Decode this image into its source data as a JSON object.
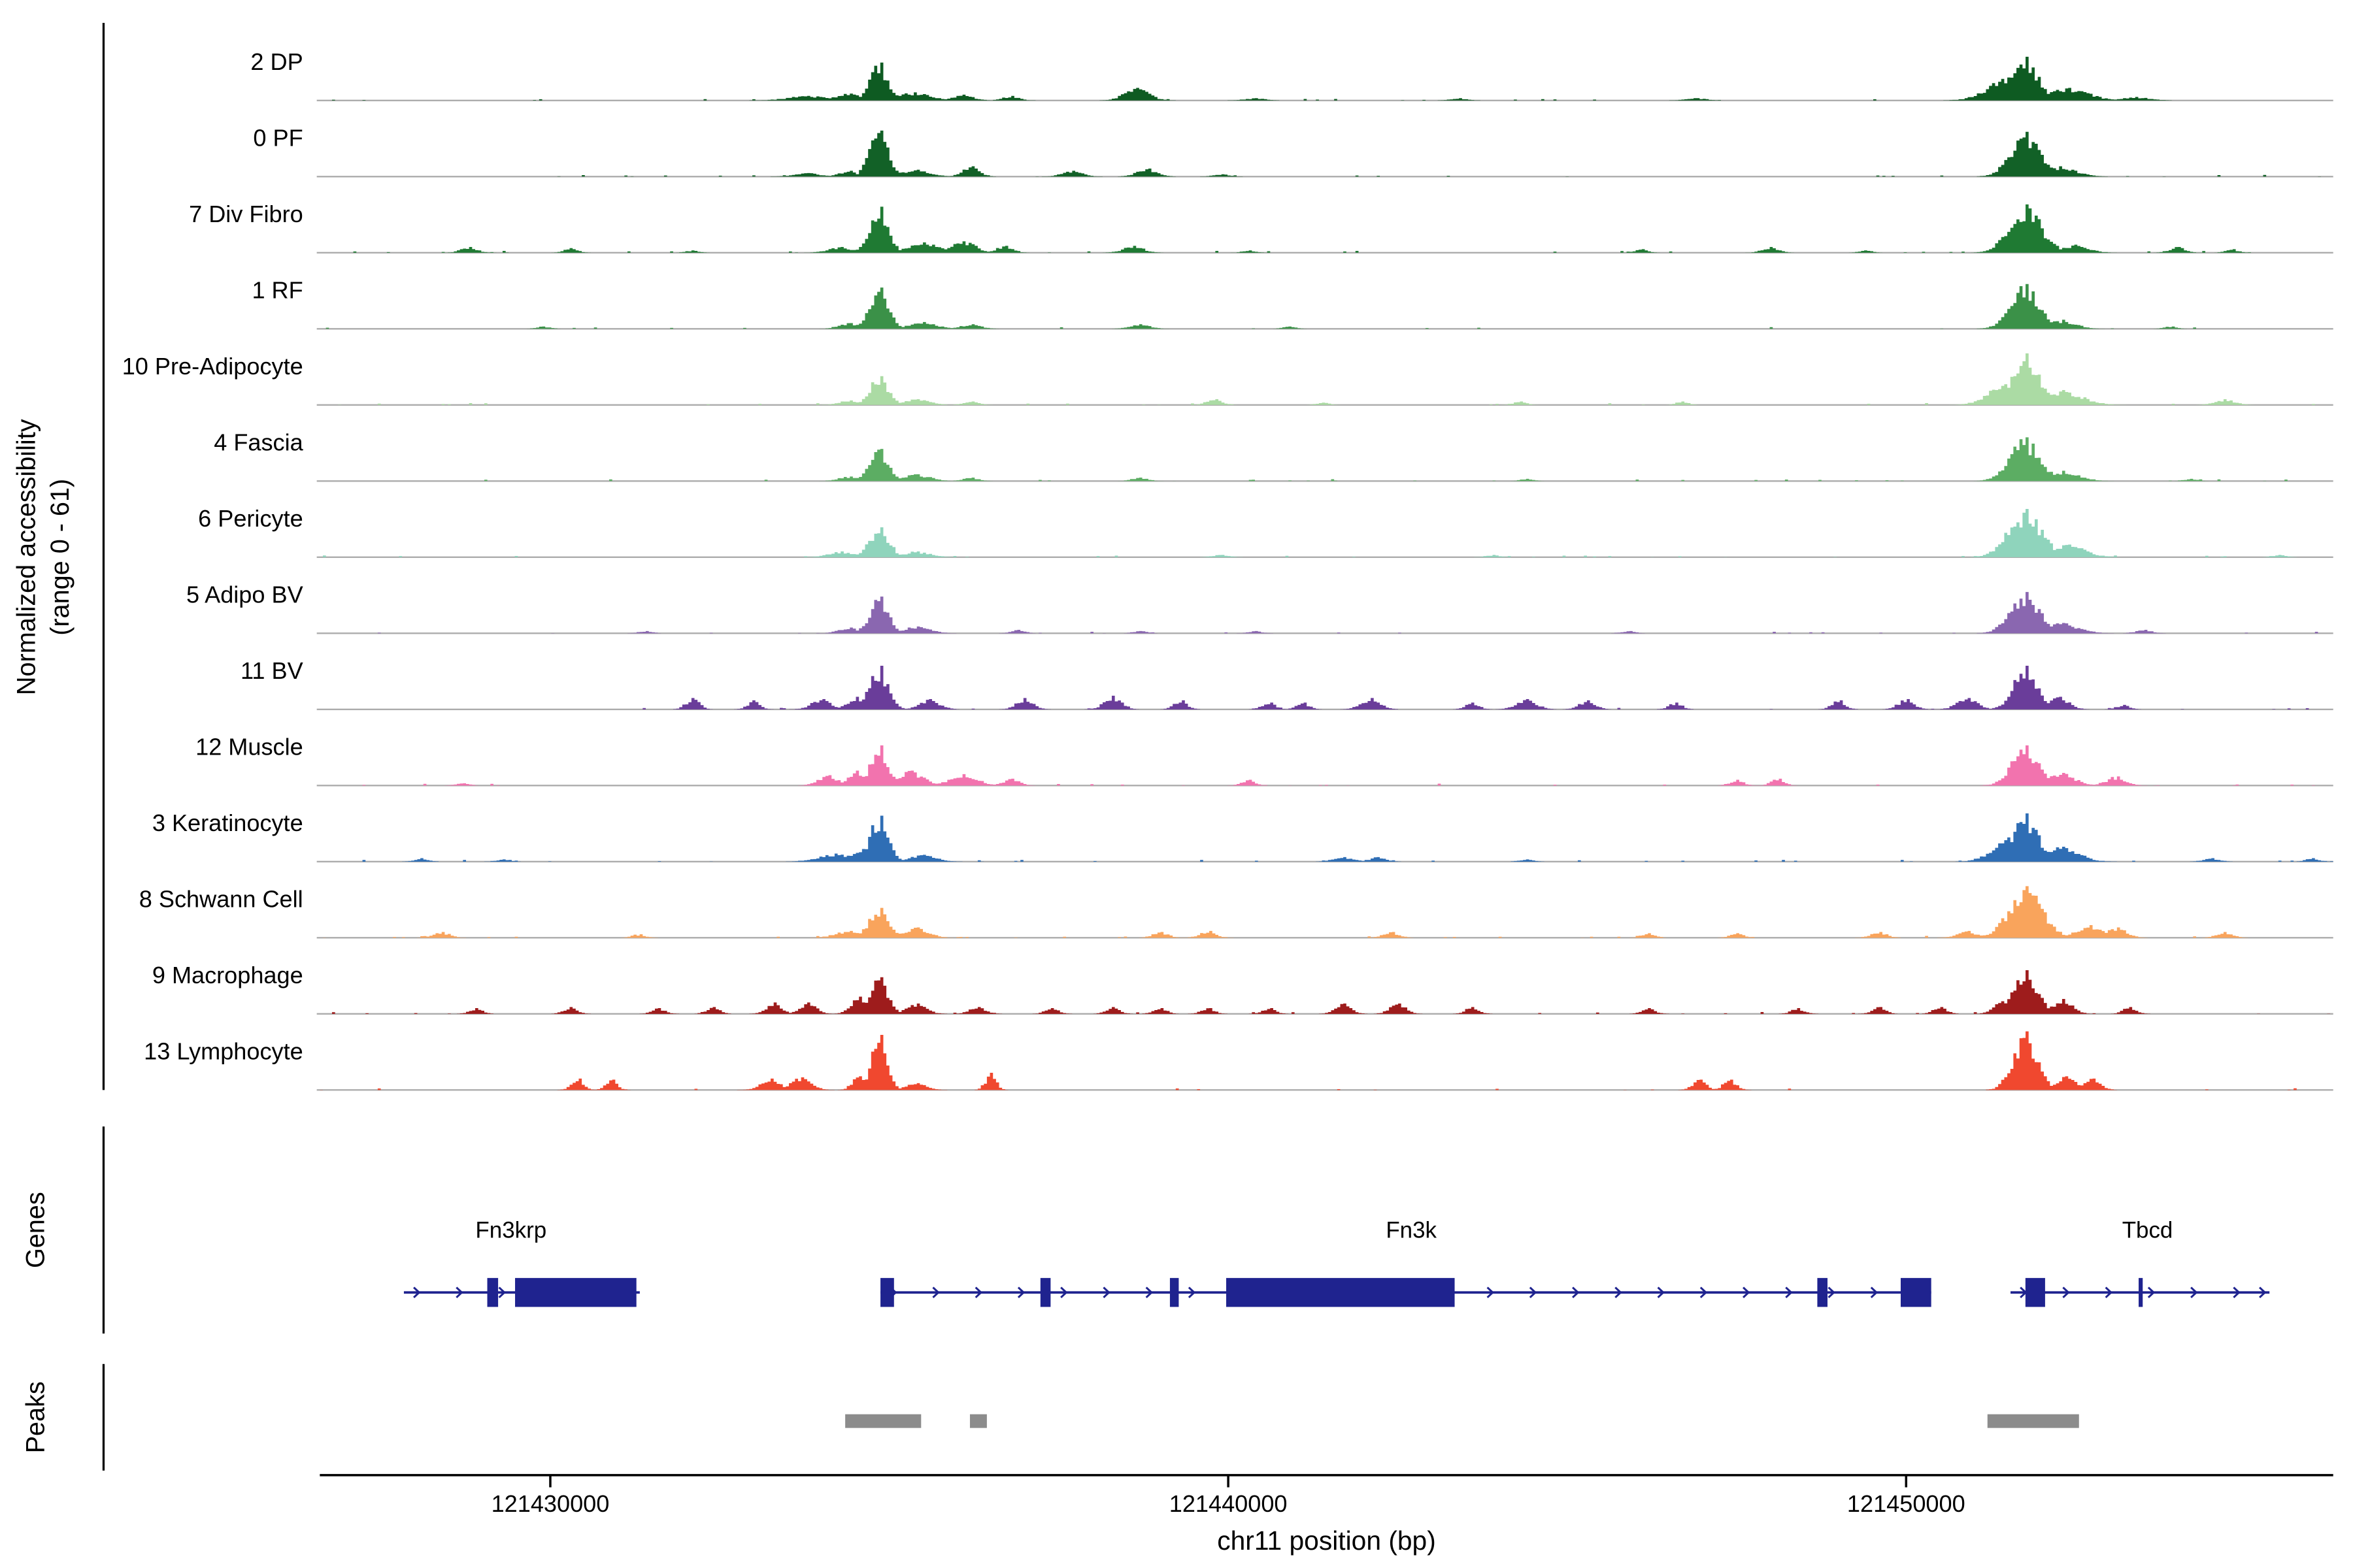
{
  "chart_data": {
    "type": "area",
    "x_axis": {
      "label": "chr11 position (bp)",
      "ticks": [
        121430000,
        121440000,
        121450000
      ],
      "range": [
        121426600,
        121456300
      ]
    },
    "y_axis": {
      "label": "Normalized accessibility",
      "sublabel": "(range 0 - 61)",
      "per_track_range": [
        0,
        61
      ]
    },
    "sections": {
      "genes_label": "Genes",
      "peaks_label": "Peaks"
    },
    "gene_color": "#1F238F",
    "peak_color": "#8C8C8C",
    "baseline_color": "#ACACAC",
    "tracks": [
      {
        "label": "2 DP",
        "color": "#0E5B22",
        "bumps": [
          [
            121433800,
            4,
            300
          ],
          [
            121434400,
            6,
            200
          ],
          [
            121434850,
            33,
            140
          ],
          [
            121435350,
            7,
            250
          ],
          [
            121436100,
            5,
            150
          ],
          [
            121436800,
            4,
            120
          ],
          [
            121438650,
            11,
            180
          ],
          [
            121440400,
            2,
            150
          ],
          [
            121443400,
            2,
            120
          ],
          [
            121446900,
            2,
            150
          ],
          [
            121451510,
            20,
            300
          ],
          [
            121451760,
            38,
            200
          ],
          [
            121452400,
            11,
            300
          ],
          [
            121453400,
            3,
            200
          ]
        ]
      },
      {
        "label": "0 PF",
        "color": "#126127",
        "bumps": [
          [
            121433800,
            3,
            200
          ],
          [
            121434400,
            5,
            150
          ],
          [
            121434850,
            40,
            140
          ],
          [
            121435400,
            6,
            200
          ],
          [
            121436200,
            9,
            130
          ],
          [
            121437700,
            5,
            150
          ],
          [
            121438800,
            7,
            150
          ],
          [
            121439900,
            2,
            120
          ],
          [
            121451760,
            39,
            220
          ],
          [
            121452250,
            9,
            250
          ]
        ]
      },
      {
        "label": "7 Div Fibro",
        "color": "#1F7A33",
        "bumps": [
          [
            121428800,
            5,
            120
          ],
          [
            121430300,
            4,
            100
          ],
          [
            121432100,
            2,
            100
          ],
          [
            121434300,
            5,
            200
          ],
          [
            121434850,
            40,
            140
          ],
          [
            121435500,
            9,
            250
          ],
          [
            121436100,
            10,
            180
          ],
          [
            121436700,
            6,
            120
          ],
          [
            121438600,
            6,
            150
          ],
          [
            121440300,
            2,
            100
          ],
          [
            121446100,
            3,
            100
          ],
          [
            121448000,
            5,
            120
          ],
          [
            121449400,
            2,
            100
          ],
          [
            121451760,
            42,
            240
          ],
          [
            121452500,
            7,
            200
          ],
          [
            121454000,
            5,
            120
          ],
          [
            121454800,
            3,
            100
          ]
        ]
      },
      {
        "label": "1 RF",
        "color": "#3B9148",
        "bumps": [
          [
            121429900,
            2,
            100
          ],
          [
            121434400,
            5,
            150
          ],
          [
            121434850,
            36,
            140
          ],
          [
            121435500,
            6,
            200
          ],
          [
            121436200,
            4,
            150
          ],
          [
            121438700,
            4,
            150
          ],
          [
            121440900,
            2,
            100
          ],
          [
            121451760,
            39,
            220
          ],
          [
            121452300,
            8,
            200
          ],
          [
            121453900,
            2,
            100
          ]
        ]
      },
      {
        "label": "10 Pre-Adipocyte",
        "color": "#ABDBA4",
        "bumps": [
          [
            121434400,
            4,
            150
          ],
          [
            121434850,
            25,
            140
          ],
          [
            121435400,
            5,
            200
          ],
          [
            121436200,
            3,
            120
          ],
          [
            121439800,
            5,
            120
          ],
          [
            121441400,
            2,
            100
          ],
          [
            121444300,
            3,
            100
          ],
          [
            121446700,
            3,
            100
          ],
          [
            121451460,
            18,
            250
          ],
          [
            121451760,
            45,
            200
          ],
          [
            121452300,
            13,
            300
          ],
          [
            121454700,
            5,
            150
          ]
        ]
      },
      {
        "label": "4 Fascia",
        "color": "#5CAD63",
        "bumps": [
          [
            121434400,
            4,
            150
          ],
          [
            121434850,
            28,
            140
          ],
          [
            121435400,
            6,
            200
          ],
          [
            121436200,
            3,
            120
          ],
          [
            121438700,
            3,
            120
          ],
          [
            121444400,
            2,
            100
          ],
          [
            121451760,
            38,
            230
          ],
          [
            121452300,
            9,
            250
          ],
          [
            121454200,
            2,
            100
          ]
        ]
      },
      {
        "label": "6 Pericyte",
        "color": "#8FD4BC",
        "bumps": [
          [
            121434300,
            5,
            200
          ],
          [
            121434850,
            26,
            150
          ],
          [
            121435400,
            5,
            200
          ],
          [
            121439900,
            2,
            120
          ],
          [
            121443900,
            2,
            100
          ],
          [
            121451760,
            42,
            250
          ],
          [
            121452400,
            11,
            250
          ],
          [
            121455500,
            2,
            100
          ]
        ]
      },
      {
        "label": "5 Adipo BV",
        "color": "#8A67B0",
        "bumps": [
          [
            121431400,
            2,
            100
          ],
          [
            121434400,
            5,
            150
          ],
          [
            121434850,
            32,
            140
          ],
          [
            121435400,
            6,
            200
          ],
          [
            121436900,
            3,
            100
          ],
          [
            121438700,
            2,
            100
          ],
          [
            121440400,
            2,
            100
          ],
          [
            121445900,
            2,
            100
          ],
          [
            121451760,
            36,
            220
          ],
          [
            121452300,
            9,
            250
          ],
          [
            121453500,
            3,
            120
          ]
        ]
      },
      {
        "label": "11 BV",
        "color": "#6A3D9A",
        "bumps": [
          [
            121432100,
            10,
            100
          ],
          [
            121433000,
            8,
            90
          ],
          [
            121434000,
            9,
            150
          ],
          [
            121434520,
            11,
            150
          ],
          [
            121434850,
            38,
            140
          ],
          [
            121435600,
            9,
            150
          ],
          [
            121437000,
            10,
            120
          ],
          [
            121438300,
            12,
            130
          ],
          [
            121439300,
            8,
            100
          ],
          [
            121440600,
            6,
            100
          ],
          [
            121441100,
            6,
            100
          ],
          [
            121442100,
            10,
            140
          ],
          [
            121443600,
            6,
            100
          ],
          [
            121444400,
            9,
            150
          ],
          [
            121445300,
            8,
            120
          ],
          [
            121446600,
            6,
            100
          ],
          [
            121449000,
            8,
            100
          ],
          [
            121450000,
            9,
            120
          ],
          [
            121450900,
            10,
            150
          ],
          [
            121451760,
            38,
            180
          ],
          [
            121452250,
            11,
            150
          ],
          [
            121453200,
            4,
            100
          ]
        ]
      },
      {
        "label": "12 Muscle",
        "color": "#F273AE",
        "bumps": [
          [
            121428700,
            2,
            100
          ],
          [
            121434100,
            9,
            150
          ],
          [
            121434520,
            13,
            120
          ],
          [
            121434850,
            35,
            130
          ],
          [
            121435300,
            13,
            200
          ],
          [
            121436100,
            10,
            200
          ],
          [
            121436800,
            6,
            120
          ],
          [
            121440300,
            5,
            100
          ],
          [
            121447500,
            5,
            100
          ],
          [
            121448100,
            6,
            100
          ],
          [
            121451760,
            35,
            200
          ],
          [
            121452300,
            11,
            200
          ],
          [
            121453100,
            8,
            150
          ]
        ]
      },
      {
        "label": "3 Keratinocyte",
        "color": "#2F6EB5",
        "bumps": [
          [
            121428100,
            3,
            100
          ],
          [
            121429300,
            2,
            100
          ],
          [
            121434200,
            7,
            250
          ],
          [
            121434600,
            11,
            150
          ],
          [
            121434850,
            40,
            140
          ],
          [
            121435500,
            6,
            200
          ],
          [
            121441700,
            4,
            150
          ],
          [
            121442200,
            4,
            120
          ],
          [
            121444400,
            2,
            100
          ],
          [
            121451560,
            26,
            250
          ],
          [
            121451760,
            42,
            200
          ],
          [
            121452300,
            13,
            250
          ],
          [
            121454500,
            3,
            120
          ],
          [
            121456000,
            3,
            100
          ]
        ]
      },
      {
        "label": "8 Schwann Cell",
        "color": "#F9A45C",
        "bumps": [
          [
            121428400,
            5,
            120
          ],
          [
            121431300,
            3,
            100
          ],
          [
            121434400,
            6,
            200
          ],
          [
            121434850,
            26,
            150
          ],
          [
            121435400,
            9,
            180
          ],
          [
            121439000,
            5,
            120
          ],
          [
            121439700,
            6,
            120
          ],
          [
            121442400,
            5,
            120
          ],
          [
            121446200,
            4,
            100
          ],
          [
            121447500,
            4,
            100
          ],
          [
            121449600,
            5,
            120
          ],
          [
            121450900,
            6,
            150
          ],
          [
            121451760,
            45,
            250
          ],
          [
            121452700,
            11,
            200
          ],
          [
            121453100,
            9,
            150
          ],
          [
            121454700,
            5,
            120
          ]
        ]
      },
      {
        "label": "9 Macrophage",
        "color": "#9E1C1C",
        "bumps": [
          [
            121428900,
            5,
            100
          ],
          [
            121430300,
            6,
            100
          ],
          [
            121431600,
            5,
            100
          ],
          [
            121432400,
            6,
            100
          ],
          [
            121433300,
            10,
            120
          ],
          [
            121433800,
            10,
            120
          ],
          [
            121434550,
            15,
            120
          ],
          [
            121434850,
            32,
            130
          ],
          [
            121435400,
            9,
            150
          ],
          [
            121436300,
            6,
            120
          ],
          [
            121437400,
            5,
            100
          ],
          [
            121438300,
            6,
            100
          ],
          [
            121439000,
            5,
            100
          ],
          [
            121439700,
            5,
            100
          ],
          [
            121440600,
            5,
            100
          ],
          [
            121441700,
            9,
            120
          ],
          [
            121442500,
            9,
            120
          ],
          [
            121443600,
            6,
            100
          ],
          [
            121446200,
            5,
            100
          ],
          [
            121448400,
            5,
            100
          ],
          [
            121449600,
            6,
            100
          ],
          [
            121450500,
            6,
            100
          ],
          [
            121451400,
            11,
            120
          ],
          [
            121451760,
            38,
            180
          ],
          [
            121452300,
            13,
            150
          ],
          [
            121453300,
            6,
            100
          ]
        ]
      },
      {
        "label": "13 Lymphocyte",
        "color": "#F0482F",
        "bumps": [
          [
            121430400,
            10,
            90
          ],
          [
            121430900,
            9,
            90
          ],
          [
            121433250,
            10,
            150
          ],
          [
            121433700,
            11,
            150
          ],
          [
            121434550,
            12,
            100
          ],
          [
            121434850,
            48,
            120
          ],
          [
            121435400,
            6,
            150
          ],
          [
            121436500,
            15,
            80
          ],
          [
            121446950,
            9,
            100
          ],
          [
            121447400,
            9,
            100
          ],
          [
            121451760,
            51,
            180
          ],
          [
            121452350,
            12,
            150
          ],
          [
            121452750,
            10,
            120
          ]
        ]
      }
    ],
    "genes": [
      {
        "name": "Fn3krp",
        "label_bp": 121429420,
        "start": 121427840,
        "end": 121431320,
        "strand": "+",
        "exons": [
          [
            121429070,
            121429230
          ],
          [
            121429480,
            121431270
          ]
        ]
      },
      {
        "name": "Fn3k",
        "label_bp": 121442700,
        "start": 121434870,
        "end": 121450370,
        "strand": "+",
        "exons": [
          [
            121434870,
            121435070
          ],
          [
            121437230,
            121437380
          ],
          [
            121439140,
            121439270
          ],
          [
            121439970,
            121443340
          ],
          [
            121448690,
            121448840
          ],
          [
            121449920,
            121450370
          ]
        ]
      },
      {
        "name": "Tbcd",
        "label_bp": 121453560,
        "start": 121451540,
        "end": 121455360,
        "strand": "+",
        "exons": [
          [
            121451760,
            121452050
          ],
          [
            121453430,
            121453490
          ]
        ]
      }
    ],
    "peaks": [
      [
        121434350,
        121435470
      ],
      [
        121436190,
        121436440
      ],
      [
        121451200,
        121452550
      ]
    ]
  }
}
